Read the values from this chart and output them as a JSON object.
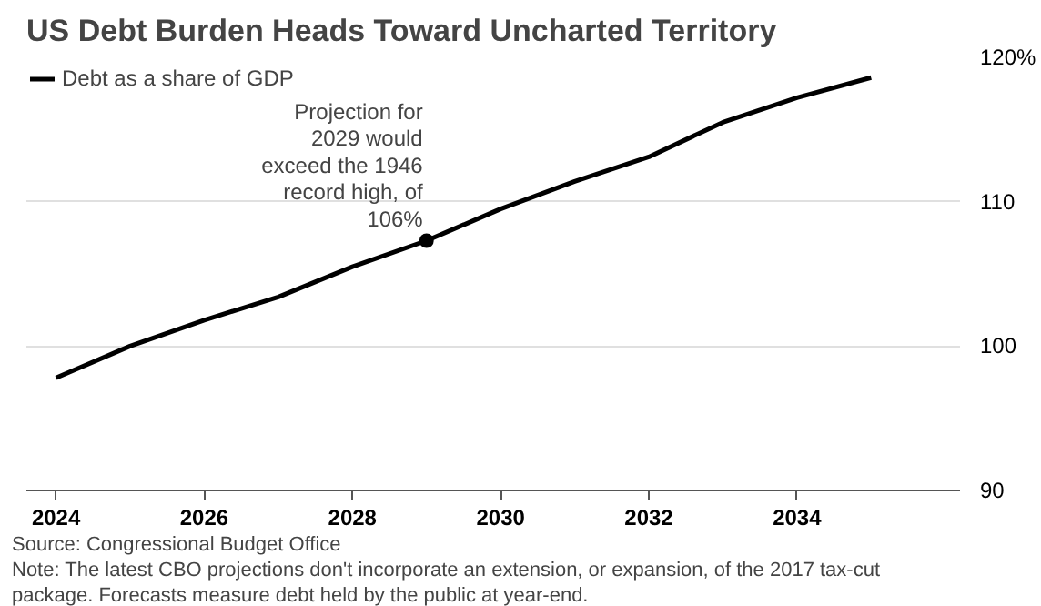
{
  "chart_data": {
    "type": "line",
    "title": "US Debt Burden Heads Toward Uncharted Territory",
    "x": [
      2024,
      2025,
      2026,
      2027,
      2028,
      2029,
      2030,
      2031,
      2032,
      2033,
      2034,
      2035
    ],
    "series": [
      {
        "name": "Debt as a share of GDP",
        "color": "#000000",
        "values": [
          97.8,
          100.0,
          101.8,
          103.4,
          105.5,
          107.3,
          109.5,
          111.4,
          113.1,
          115.5,
          117.2,
          118.6
        ]
      }
    ],
    "xlim": [
      2023.6,
      2036.2
    ],
    "ylim": [
      90,
      120
    ],
    "xticks": [
      2024,
      2026,
      2028,
      2030,
      2032,
      2034
    ],
    "yticks": [
      90,
      100,
      110,
      {
        "value": 120,
        "label": "120%"
      }
    ],
    "grid": "y",
    "legend": "top left",
    "annotations": [
      {
        "text": "Projection for\n2029 would\nexceed the 1946\nrecord high, of\n106%",
        "x": 2029,
        "y": 107.3
      },
      "Source: Congressional Budget Office",
      "Note: The latest CBO projections don't incorporate an extension, or expansion, of the 2017 tax-cut\npackage. Forecasts measure debt held by the public at year-end."
    ]
  }
}
